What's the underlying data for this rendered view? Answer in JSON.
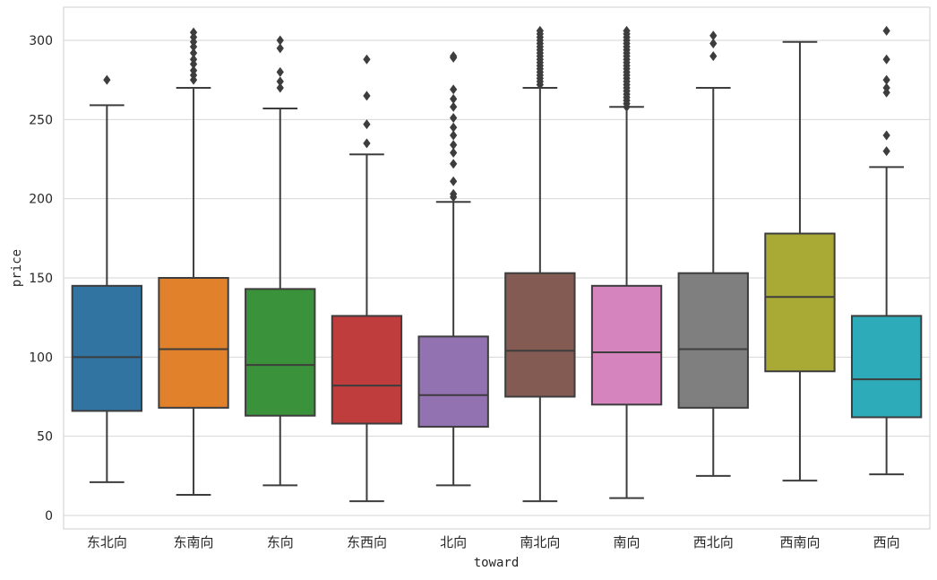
{
  "chart_data": {
    "type": "box",
    "title": "",
    "xlabel": "toward",
    "ylabel": "price",
    "ylim": [
      -5,
      320
    ],
    "yticks": [
      0,
      50,
      100,
      150,
      200,
      250,
      300
    ],
    "grid": true,
    "categories": [
      "东北向",
      "东南向",
      "东向",
      "东西向",
      "北向",
      "南北向",
      "南向",
      "西北向",
      "西南向",
      "西向"
    ],
    "series": [
      {
        "name": "东北向",
        "color": "#3274a1",
        "whisker_low": 21,
        "q1": 66,
        "median": 100,
        "q3": 145,
        "whisker_high": 259,
        "outliers": [
          275
        ]
      },
      {
        "name": "东南向",
        "color": "#e1812c",
        "whisker_low": 13,
        "q1": 68,
        "median": 105,
        "q3": 150,
        "whisker_high": 270,
        "outliers": [
          275,
          278,
          281,
          285,
          288,
          292,
          296,
          299,
          302,
          305
        ]
      },
      {
        "name": "东向",
        "color": "#3a923a",
        "whisker_low": 19,
        "q1": 63,
        "median": 95,
        "q3": 143,
        "whisker_high": 257,
        "outliers": [
          270,
          274,
          280,
          295,
          300
        ]
      },
      {
        "name": "东西向",
        "color": "#c03d3e",
        "whisker_low": 9,
        "q1": 58,
        "median": 82,
        "q3": 126,
        "whisker_high": 228,
        "outliers": [
          235,
          247,
          265,
          288
        ]
      },
      {
        "name": "北向",
        "color": "#9372b2",
        "whisker_low": 19,
        "q1": 56,
        "median": 76,
        "q3": 113,
        "whisker_high": 198,
        "outliers": [
          201,
          203,
          211,
          222,
          229,
          234,
          240,
          245,
          251,
          258,
          263,
          269,
          289,
          290
        ]
      },
      {
        "name": "南北向",
        "color": "#845b53",
        "whisker_low": 9,
        "q1": 75,
        "median": 104,
        "q3": 153,
        "whisker_high": 270,
        "outliers": [
          272,
          274,
          276,
          278,
          280,
          282,
          284,
          286,
          288,
          290,
          292,
          294,
          296,
          298,
          300,
          302,
          304,
          306
        ]
      },
      {
        "name": "南向",
        "color": "#d684bd",
        "whisker_low": 11,
        "q1": 70,
        "median": 103,
        "q3": 145,
        "whisker_high": 258,
        "outliers": [
          258,
          260,
          262,
          264,
          266,
          268,
          270,
          272,
          274,
          276,
          278,
          280,
          282,
          284,
          286,
          288,
          290,
          292,
          294,
          296,
          298,
          300,
          302,
          304,
          306
        ]
      },
      {
        "name": "西北向",
        "color": "#7f7f7f",
        "whisker_low": 25,
        "q1": 68,
        "median": 105,
        "q3": 153,
        "whisker_high": 270,
        "outliers": [
          290,
          298,
          303
        ]
      },
      {
        "name": "西南向",
        "color": "#a9aa35",
        "whisker_low": 22,
        "q1": 91,
        "median": 138,
        "q3": 178,
        "whisker_high": 299,
        "outliers": []
      },
      {
        "name": "西向",
        "color": "#2eabb8",
        "whisker_low": 26,
        "q1": 62,
        "median": 86,
        "q3": 126,
        "whisker_high": 220,
        "outliers": [
          230,
          240,
          267,
          270,
          275,
          288,
          306
        ]
      }
    ]
  }
}
